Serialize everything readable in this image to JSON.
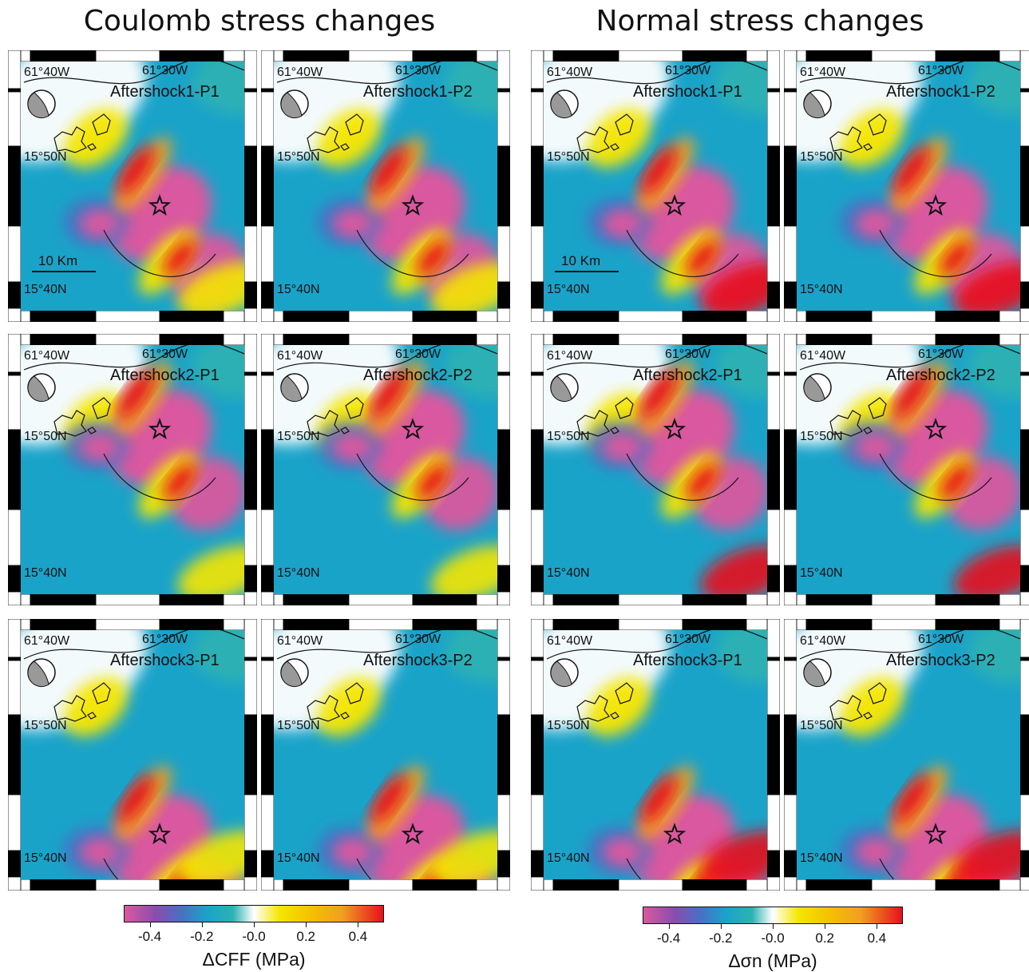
{
  "titles": {
    "left": "Coulomb stress changes",
    "right": "Normal stress changes"
  },
  "axis_labels": {
    "lon_west": "61°40W",
    "lon_mid": "61°30W",
    "lat_north": "15°50N",
    "lat_south": "15°40N"
  },
  "scale_bar": "10 Km",
  "panels": [
    {
      "name": "Aftershock1-P1",
      "group": "coulomb"
    },
    {
      "name": "Aftershock1-P2",
      "group": "coulomb"
    },
    {
      "name": "Aftershock1-P1",
      "group": "normal"
    },
    {
      "name": "Aftershock1-P2",
      "group": "normal"
    },
    {
      "name": "Aftershock2-P1",
      "group": "coulomb"
    },
    {
      "name": "Aftershock2-P2",
      "group": "coulomb"
    },
    {
      "name": "Aftershock2-P1",
      "group": "normal"
    },
    {
      "name": "Aftershock2-P2",
      "group": "normal"
    },
    {
      "name": "Aftershock3-P1",
      "group": "coulomb"
    },
    {
      "name": "Aftershock3-P2",
      "group": "coulomb"
    },
    {
      "name": "Aftershock3-P1",
      "group": "normal"
    },
    {
      "name": "Aftershock3-P2",
      "group": "normal"
    }
  ],
  "colorbars": [
    {
      "title": "ΔCFF (MPa)",
      "ticks": [
        "-0.4",
        "-0.2",
        "-0.0",
        "0.2",
        "0.4"
      ]
    },
    {
      "title": "Δσn (MPa)",
      "ticks": [
        "-0.4",
        "-0.2",
        "-0.0",
        "0.2",
        "0.4"
      ]
    }
  ],
  "colors": {
    "negative_strong": "#d9599f",
    "negative_mid": "#4a6fc4",
    "negative_weak": "#1aa3c9",
    "teal": "#2eb2b2",
    "zero": "#ffffff",
    "positive_weak": "#f5e600",
    "positive_mid": "#f0a020",
    "positive_strong": "#e8101e"
  }
}
